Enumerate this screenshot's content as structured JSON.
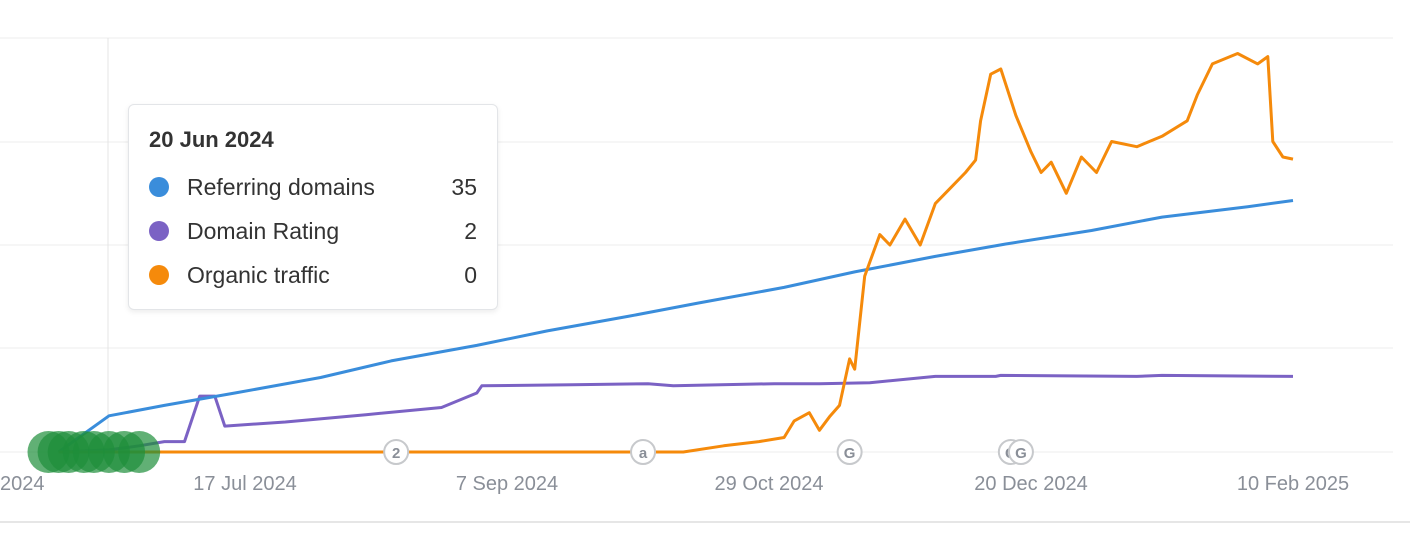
{
  "chart_data": {
    "type": "line",
    "x_ticks": [
      "17 Jul 2024",
      "7 Sep 2024",
      "29 Oct 2024",
      "20 Dec 2024",
      "10 Feb 2025"
    ],
    "x_tick_partial_left": "2024",
    "grid": "horizontal",
    "series": [
      {
        "name": "Referring domains",
        "color": "#3a8ddb",
        "points": [
          [
            "2024-06-10",
            0
          ],
          [
            "2024-06-20",
            35
          ],
          [
            "2024-07-01",
            45
          ],
          [
            "2024-07-15",
            57
          ],
          [
            "2024-08-01",
            72
          ],
          [
            "2024-08-15",
            88
          ],
          [
            "2024-09-01",
            103
          ],
          [
            "2024-09-15",
            117
          ],
          [
            "2024-10-01",
            131
          ],
          [
            "2024-10-15",
            144
          ],
          [
            "2024-11-01",
            159
          ],
          [
            "2024-11-15",
            174
          ],
          [
            "2024-12-01",
            189
          ],
          [
            "2024-12-15",
            201
          ],
          [
            "2025-01-01",
            214
          ],
          [
            "2025-01-15",
            227
          ],
          [
            "2025-02-01",
            237
          ],
          [
            "2025-02-10",
            243
          ]
        ]
      },
      {
        "name": "Domain Rating",
        "color": "#7b62c4",
        "points": [
          [
            "2024-06-10",
            0
          ],
          [
            "2024-06-20",
            2
          ],
          [
            "2024-06-26",
            6
          ],
          [
            "2024-07-01",
            10
          ],
          [
            "2024-07-05",
            10
          ],
          [
            "2024-07-08",
            54
          ],
          [
            "2024-07-11",
            54
          ],
          [
            "2024-07-13",
            25
          ],
          [
            "2024-07-25",
            29
          ],
          [
            "2024-08-10",
            36
          ],
          [
            "2024-08-25",
            43
          ],
          [
            "2024-09-01",
            57
          ],
          [
            "2024-09-02",
            64
          ],
          [
            "2024-09-20",
            65
          ],
          [
            "2024-10-05",
            66
          ],
          [
            "2024-10-10",
            64
          ],
          [
            "2024-10-30",
            66
          ],
          [
            "2024-11-08",
            66
          ],
          [
            "2024-11-18",
            67
          ],
          [
            "2024-12-01",
            73
          ],
          [
            "2024-12-13",
            73
          ],
          [
            "2024-12-14",
            74
          ],
          [
            "2025-01-10",
            73
          ],
          [
            "2025-01-15",
            74
          ],
          [
            "2025-02-10",
            73
          ]
        ]
      },
      {
        "name": "Organic traffic",
        "color": "#f58a0b",
        "points": [
          [
            "2024-06-10",
            0
          ],
          [
            "2024-10-12",
            0
          ],
          [
            "2024-10-20",
            6
          ],
          [
            "2024-10-27",
            10
          ],
          [
            "2024-11-01",
            14
          ],
          [
            "2024-11-03",
            30
          ],
          [
            "2024-11-06",
            38
          ],
          [
            "2024-11-08",
            21
          ],
          [
            "2024-11-10",
            34
          ],
          [
            "2024-11-12",
            45
          ],
          [
            "2024-11-14",
            90
          ],
          [
            "2024-11-15",
            80
          ],
          [
            "2024-11-17",
            170
          ],
          [
            "2024-11-20",
            210
          ],
          [
            "2024-11-22",
            200
          ],
          [
            "2024-11-25",
            225
          ],
          [
            "2024-11-28",
            200
          ],
          [
            "2024-12-01",
            240
          ],
          [
            "2024-12-04",
            255
          ],
          [
            "2024-12-07",
            270
          ],
          [
            "2024-12-09",
            282
          ],
          [
            "2024-12-10",
            320
          ],
          [
            "2024-12-12",
            365
          ],
          [
            "2024-12-14",
            370
          ],
          [
            "2024-12-17",
            325
          ],
          [
            "2024-12-20",
            290
          ],
          [
            "2024-12-22",
            270
          ],
          [
            "2024-12-24",
            280
          ],
          [
            "2024-12-27",
            250
          ],
          [
            "2024-12-30",
            285
          ],
          [
            "2025-01-02",
            270
          ],
          [
            "2025-01-05",
            300
          ],
          [
            "2025-01-10",
            295
          ],
          [
            "2025-01-15",
            305
          ],
          [
            "2025-01-20",
            320
          ],
          [
            "2025-01-22",
            345
          ],
          [
            "2025-01-25",
            375
          ],
          [
            "2025-01-30",
            385
          ],
          [
            "2025-02-03",
            375
          ],
          [
            "2025-02-05",
            382
          ],
          [
            "2025-02-06",
            300
          ],
          [
            "2025-02-08",
            285
          ],
          [
            "2025-02-10",
            283
          ]
        ]
      }
    ],
    "annotations": [
      {
        "label": "2",
        "date": "2024-08-16"
      },
      {
        "label": "a",
        "date": "2024-10-04"
      },
      {
        "label": "G",
        "date": "2024-11-14"
      },
      {
        "label": "G",
        "date": "2024-12-16"
      },
      {
        "label": "G",
        "date": "2024-12-18"
      }
    ],
    "cluster_markers": {
      "color": "#1e8f3b",
      "dates": [
        "2024-06-08",
        "2024-06-10",
        "2024-06-12",
        "2024-06-15",
        "2024-06-17",
        "2024-06-20",
        "2024-06-23",
        "2024-06-26"
      ]
    },
    "hover_date": "2024-06-20"
  },
  "tooltip": {
    "date": "20 Jun 2024",
    "rows": [
      {
        "name": "Referring domains",
        "value": "35",
        "color": "#3a8ddb"
      },
      {
        "name": "Domain Rating",
        "value": "2",
        "color": "#7b62c4"
      },
      {
        "name": "Organic traffic",
        "value": "0",
        "color": "#f58a0b"
      }
    ]
  }
}
